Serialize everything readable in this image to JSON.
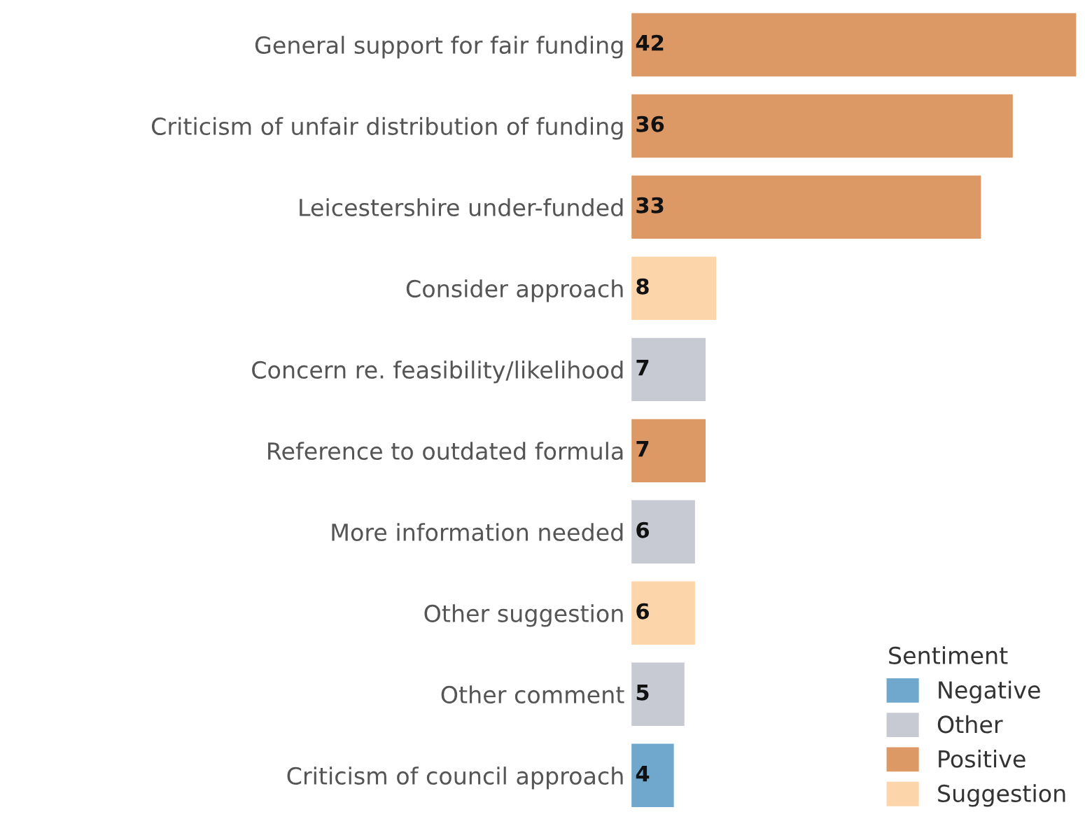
{
  "chart_data": {
    "type": "bar",
    "orientation": "horizontal",
    "legend_title": "Sentiment",
    "legend": "bottom right",
    "data_labels": true,
    "xlim": [
      0,
      42
    ],
    "tick_labels": "y",
    "categories": [
      "General support for fair funding",
      "Criticism of unfair distribution of funding",
      "Leicestershire under-funded",
      "Consider approach",
      "Concern re. feasibility/likelihood",
      "Reference to outdated formula",
      "More information needed",
      "Other suggestion",
      "Other comment",
      "Criticism of council approach"
    ],
    "series": [
      {
        "name": "Negative",
        "color": "#6fa8cc",
        "values": [
          null,
          null,
          null,
          null,
          null,
          null,
          null,
          null,
          null,
          4
        ]
      },
      {
        "name": "Other",
        "color": "#c7cad3",
        "values": [
          null,
          null,
          null,
          null,
          7,
          null,
          6,
          null,
          5,
          null
        ]
      },
      {
        "name": "Positive",
        "color": "#dc9966",
        "values": [
          42,
          36,
          33,
          null,
          null,
          7,
          null,
          null,
          null,
          null
        ]
      },
      {
        "name": "Suggestion",
        "color": "#fdd5aa",
        "values": [
          null,
          null,
          null,
          8,
          null,
          null,
          null,
          6,
          null,
          null
        ]
      }
    ]
  }
}
